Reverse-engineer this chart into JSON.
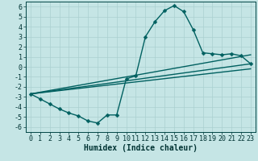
{
  "title": "",
  "xlabel": "Humidex (Indice chaleur)",
  "ylabel": "",
  "bg_color": "#c5e5e5",
  "line_color": "#006060",
  "xlim": [
    -0.5,
    23.5
  ],
  "ylim": [
    -6.5,
    6.5
  ],
  "xticks": [
    0,
    1,
    2,
    3,
    4,
    5,
    6,
    7,
    8,
    9,
    10,
    11,
    12,
    13,
    14,
    15,
    16,
    17,
    18,
    19,
    20,
    21,
    22,
    23
  ],
  "yticks": [
    -6,
    -5,
    -4,
    -3,
    -2,
    -1,
    0,
    1,
    2,
    3,
    4,
    5,
    6
  ],
  "series_main": {
    "x": [
      0,
      1,
      2,
      3,
      4,
      5,
      6,
      7,
      8,
      9,
      10,
      11,
      12,
      13,
      14,
      15,
      16,
      17,
      18,
      19,
      20,
      21,
      22,
      23
    ],
    "y": [
      -2.7,
      -3.2,
      -3.7,
      -4.2,
      -4.6,
      -4.9,
      -5.4,
      -5.6,
      -4.8,
      -4.8,
      -1.2,
      -0.9,
      3.0,
      4.5,
      5.6,
      6.1,
      5.5,
      3.7,
      1.4,
      1.3,
      1.2,
      1.3,
      1.1,
      0.3
    ]
  },
  "series_lines": [
    {
      "x0": 0,
      "y0": -2.7,
      "x1": 23,
      "y1": 1.2
    },
    {
      "x0": 0,
      "y0": -2.7,
      "x1": 23,
      "y1": 0.3
    },
    {
      "x0": 0,
      "y0": -2.7,
      "x1": 23,
      "y1": -0.2
    }
  ],
  "grid_color": "#aad0d0",
  "xlabel_fontsize": 7,
  "tick_fontsize": 6,
  "linewidth": 1.0,
  "markersize": 2.5
}
